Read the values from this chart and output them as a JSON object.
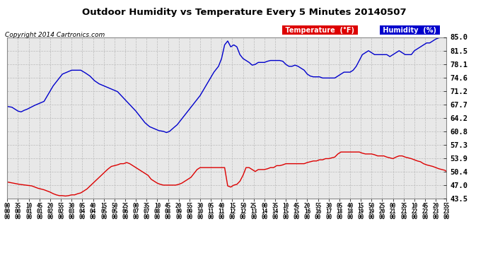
{
  "title": "Outdoor Humidity vs Temperature Every 5 Minutes 20140507",
  "copyright": "Copyright 2014 Cartronics.com",
  "legend_temp": "Temperature  (°F)",
  "legend_hum": "Humidity  (%)",
  "yticks": [
    43.5,
    47.0,
    50.4,
    53.9,
    57.3,
    60.8,
    64.2,
    67.7,
    71.2,
    74.6,
    78.1,
    81.5,
    85.0
  ],
  "ylim": [
    43.5,
    85.0
  ],
  "temp_color": "#dd0000",
  "hum_color": "#0000cc",
  "bg_color": "#e8e8e8",
  "grid_color": "#bbbbbb",
  "title_color": "#000000",
  "legend_temp_bg": "#dd0000",
  "legend_hum_bg": "#0000cc",
  "hum_waypoints": [
    [
      0,
      67.2
    ],
    [
      3,
      67.0
    ],
    [
      5,
      66.5
    ],
    [
      7,
      66.0
    ],
    [
      9,
      65.8
    ],
    [
      11,
      66.2
    ],
    [
      13,
      66.5
    ],
    [
      18,
      67.5
    ],
    [
      24,
      68.5
    ],
    [
      30,
      72.5
    ],
    [
      36,
      75.5
    ],
    [
      42,
      76.5
    ],
    [
      48,
      76.5
    ],
    [
      51,
      75.8
    ],
    [
      54,
      75.0
    ],
    [
      57,
      73.8
    ],
    [
      60,
      73.0
    ],
    [
      63,
      72.5
    ],
    [
      66,
      72.0
    ],
    [
      69,
      71.5
    ],
    [
      72,
      71.0
    ],
    [
      78,
      68.5
    ],
    [
      84,
      66.0
    ],
    [
      87,
      64.5
    ],
    [
      90,
      63.0
    ],
    [
      93,
      62.0
    ],
    [
      96,
      61.5
    ],
    [
      99,
      61.0
    ],
    [
      102,
      60.8
    ],
    [
      104,
      60.5
    ],
    [
      106,
      60.8
    ],
    [
      108,
      61.5
    ],
    [
      111,
      62.5
    ],
    [
      114,
      64.0
    ],
    [
      117,
      65.5
    ],
    [
      120,
      67.0
    ],
    [
      123,
      68.5
    ],
    [
      126,
      70.0
    ],
    [
      129,
      72.0
    ],
    [
      132,
      74.0
    ],
    [
      135,
      76.0
    ],
    [
      138,
      77.5
    ],
    [
      140,
      79.5
    ],
    [
      142,
      83.0
    ],
    [
      144,
      84.0
    ],
    [
      146,
      82.5
    ],
    [
      148,
      83.0
    ],
    [
      150,
      82.5
    ],
    [
      152,
      80.5
    ],
    [
      154,
      79.5
    ],
    [
      156,
      79.0
    ],
    [
      158,
      78.5
    ],
    [
      160,
      77.8
    ],
    [
      162,
      78.0
    ],
    [
      164,
      78.5
    ],
    [
      166,
      78.5
    ],
    [
      168,
      78.5
    ],
    [
      170,
      78.8
    ],
    [
      172,
      79.0
    ],
    [
      174,
      79.0
    ],
    [
      176,
      79.0
    ],
    [
      178,
      79.0
    ],
    [
      180,
      78.8
    ],
    [
      182,
      78.0
    ],
    [
      184,
      77.5
    ],
    [
      186,
      77.5
    ],
    [
      188,
      77.8
    ],
    [
      190,
      77.5
    ],
    [
      192,
      77.0
    ],
    [
      194,
      76.5
    ],
    [
      196,
      75.5
    ],
    [
      198,
      75.0
    ],
    [
      200,
      74.8
    ],
    [
      202,
      74.8
    ],
    [
      204,
      74.8
    ],
    [
      206,
      74.5
    ],
    [
      208,
      74.5
    ],
    [
      210,
      74.5
    ],
    [
      212,
      74.5
    ],
    [
      214,
      74.5
    ],
    [
      216,
      75.0
    ],
    [
      218,
      75.5
    ],
    [
      220,
      76.0
    ],
    [
      222,
      76.0
    ],
    [
      224,
      76.0
    ],
    [
      226,
      76.5
    ],
    [
      228,
      77.5
    ],
    [
      230,
      79.0
    ],
    [
      232,
      80.5
    ],
    [
      234,
      81.0
    ],
    [
      236,
      81.5
    ],
    [
      238,
      81.0
    ],
    [
      240,
      80.5
    ],
    [
      242,
      80.5
    ],
    [
      244,
      80.5
    ],
    [
      246,
      80.5
    ],
    [
      248,
      80.5
    ],
    [
      250,
      80.0
    ],
    [
      252,
      80.5
    ],
    [
      254,
      81.0
    ],
    [
      256,
      81.5
    ],
    [
      258,
      81.0
    ],
    [
      260,
      80.5
    ],
    [
      262,
      80.5
    ],
    [
      264,
      80.5
    ],
    [
      266,
      81.5
    ],
    [
      268,
      82.0
    ],
    [
      270,
      82.5
    ],
    [
      272,
      83.0
    ],
    [
      274,
      83.5
    ],
    [
      276,
      83.5
    ],
    [
      278,
      84.0
    ],
    [
      280,
      84.5
    ],
    [
      282,
      84.8
    ],
    [
      285,
      85.0
    ],
    [
      287,
      85.2
    ]
  ],
  "temp_waypoints": [
    [
      0,
      47.8
    ],
    [
      4,
      47.5
    ],
    [
      8,
      47.2
    ],
    [
      12,
      47.0
    ],
    [
      16,
      46.8
    ],
    [
      20,
      46.2
    ],
    [
      24,
      45.8
    ],
    [
      28,
      45.2
    ],
    [
      30,
      44.8
    ],
    [
      32,
      44.5
    ],
    [
      34,
      44.3
    ],
    [
      36,
      44.3
    ],
    [
      38,
      44.2
    ],
    [
      40,
      44.3
    ],
    [
      42,
      44.5
    ],
    [
      44,
      44.5
    ],
    [
      46,
      44.8
    ],
    [
      48,
      45.0
    ],
    [
      52,
      46.0
    ],
    [
      56,
      47.5
    ],
    [
      60,
      49.0
    ],
    [
      64,
      50.5
    ],
    [
      66,
      51.2
    ],
    [
      68,
      51.8
    ],
    [
      70,
      52.0
    ],
    [
      72,
      52.2
    ],
    [
      74,
      52.5
    ],
    [
      76,
      52.5
    ],
    [
      78,
      52.8
    ],
    [
      80,
      52.5
    ],
    [
      82,
      52.0
    ],
    [
      84,
      51.5
    ],
    [
      86,
      51.0
    ],
    [
      88,
      50.5
    ],
    [
      90,
      50.0
    ],
    [
      92,
      49.5
    ],
    [
      94,
      48.5
    ],
    [
      96,
      48.0
    ],
    [
      98,
      47.5
    ],
    [
      100,
      47.2
    ],
    [
      102,
      47.0
    ],
    [
      104,
      47.0
    ],
    [
      106,
      47.0
    ],
    [
      108,
      47.0
    ],
    [
      110,
      47.0
    ],
    [
      112,
      47.2
    ],
    [
      114,
      47.5
    ],
    [
      116,
      48.0
    ],
    [
      118,
      48.5
    ],
    [
      120,
      49.0
    ],
    [
      122,
      50.0
    ],
    [
      124,
      51.0
    ],
    [
      126,
      51.5
    ],
    [
      128,
      51.5
    ],
    [
      130,
      51.5
    ],
    [
      132,
      51.5
    ],
    [
      134,
      51.5
    ],
    [
      136,
      51.5
    ],
    [
      138,
      51.5
    ],
    [
      140,
      51.5
    ],
    [
      142,
      51.5
    ],
    [
      144,
      46.8
    ],
    [
      146,
      46.5
    ],
    [
      148,
      47.0
    ],
    [
      150,
      47.2
    ],
    [
      152,
      48.0
    ],
    [
      154,
      49.5
    ],
    [
      156,
      51.5
    ],
    [
      158,
      51.5
    ],
    [
      160,
      51.0
    ],
    [
      162,
      50.5
    ],
    [
      164,
      51.0
    ],
    [
      166,
      51.0
    ],
    [
      168,
      51.0
    ],
    [
      170,
      51.2
    ],
    [
      172,
      51.5
    ],
    [
      174,
      51.5
    ],
    [
      176,
      52.0
    ],
    [
      178,
      52.0
    ],
    [
      180,
      52.2
    ],
    [
      182,
      52.5
    ],
    [
      184,
      52.5
    ],
    [
      186,
      52.5
    ],
    [
      188,
      52.5
    ],
    [
      190,
      52.5
    ],
    [
      192,
      52.5
    ],
    [
      194,
      52.5
    ],
    [
      196,
      52.8
    ],
    [
      198,
      53.0
    ],
    [
      200,
      53.2
    ],
    [
      202,
      53.2
    ],
    [
      204,
      53.5
    ],
    [
      206,
      53.5
    ],
    [
      208,
      53.8
    ],
    [
      210,
      53.8
    ],
    [
      212,
      54.0
    ],
    [
      214,
      54.2
    ],
    [
      216,
      55.0
    ],
    [
      218,
      55.5
    ],
    [
      220,
      55.5
    ],
    [
      222,
      55.5
    ],
    [
      224,
      55.5
    ],
    [
      226,
      55.5
    ],
    [
      228,
      55.5
    ],
    [
      230,
      55.5
    ],
    [
      232,
      55.2
    ],
    [
      234,
      55.0
    ],
    [
      236,
      55.0
    ],
    [
      238,
      55.0
    ],
    [
      240,
      54.8
    ],
    [
      242,
      54.5
    ],
    [
      244,
      54.5
    ],
    [
      246,
      54.5
    ],
    [
      248,
      54.2
    ],
    [
      250,
      54.0
    ],
    [
      252,
      53.8
    ],
    [
      254,
      54.2
    ],
    [
      256,
      54.5
    ],
    [
      258,
      54.5
    ],
    [
      260,
      54.2
    ],
    [
      262,
      54.0
    ],
    [
      264,
      53.8
    ],
    [
      266,
      53.5
    ],
    [
      268,
      53.2
    ],
    [
      270,
      53.0
    ],
    [
      272,
      52.5
    ],
    [
      274,
      52.2
    ],
    [
      276,
      52.0
    ],
    [
      278,
      51.8
    ],
    [
      280,
      51.5
    ],
    [
      282,
      51.2
    ],
    [
      284,
      51.0
    ],
    [
      286,
      50.8
    ],
    [
      287,
      50.5
    ]
  ]
}
